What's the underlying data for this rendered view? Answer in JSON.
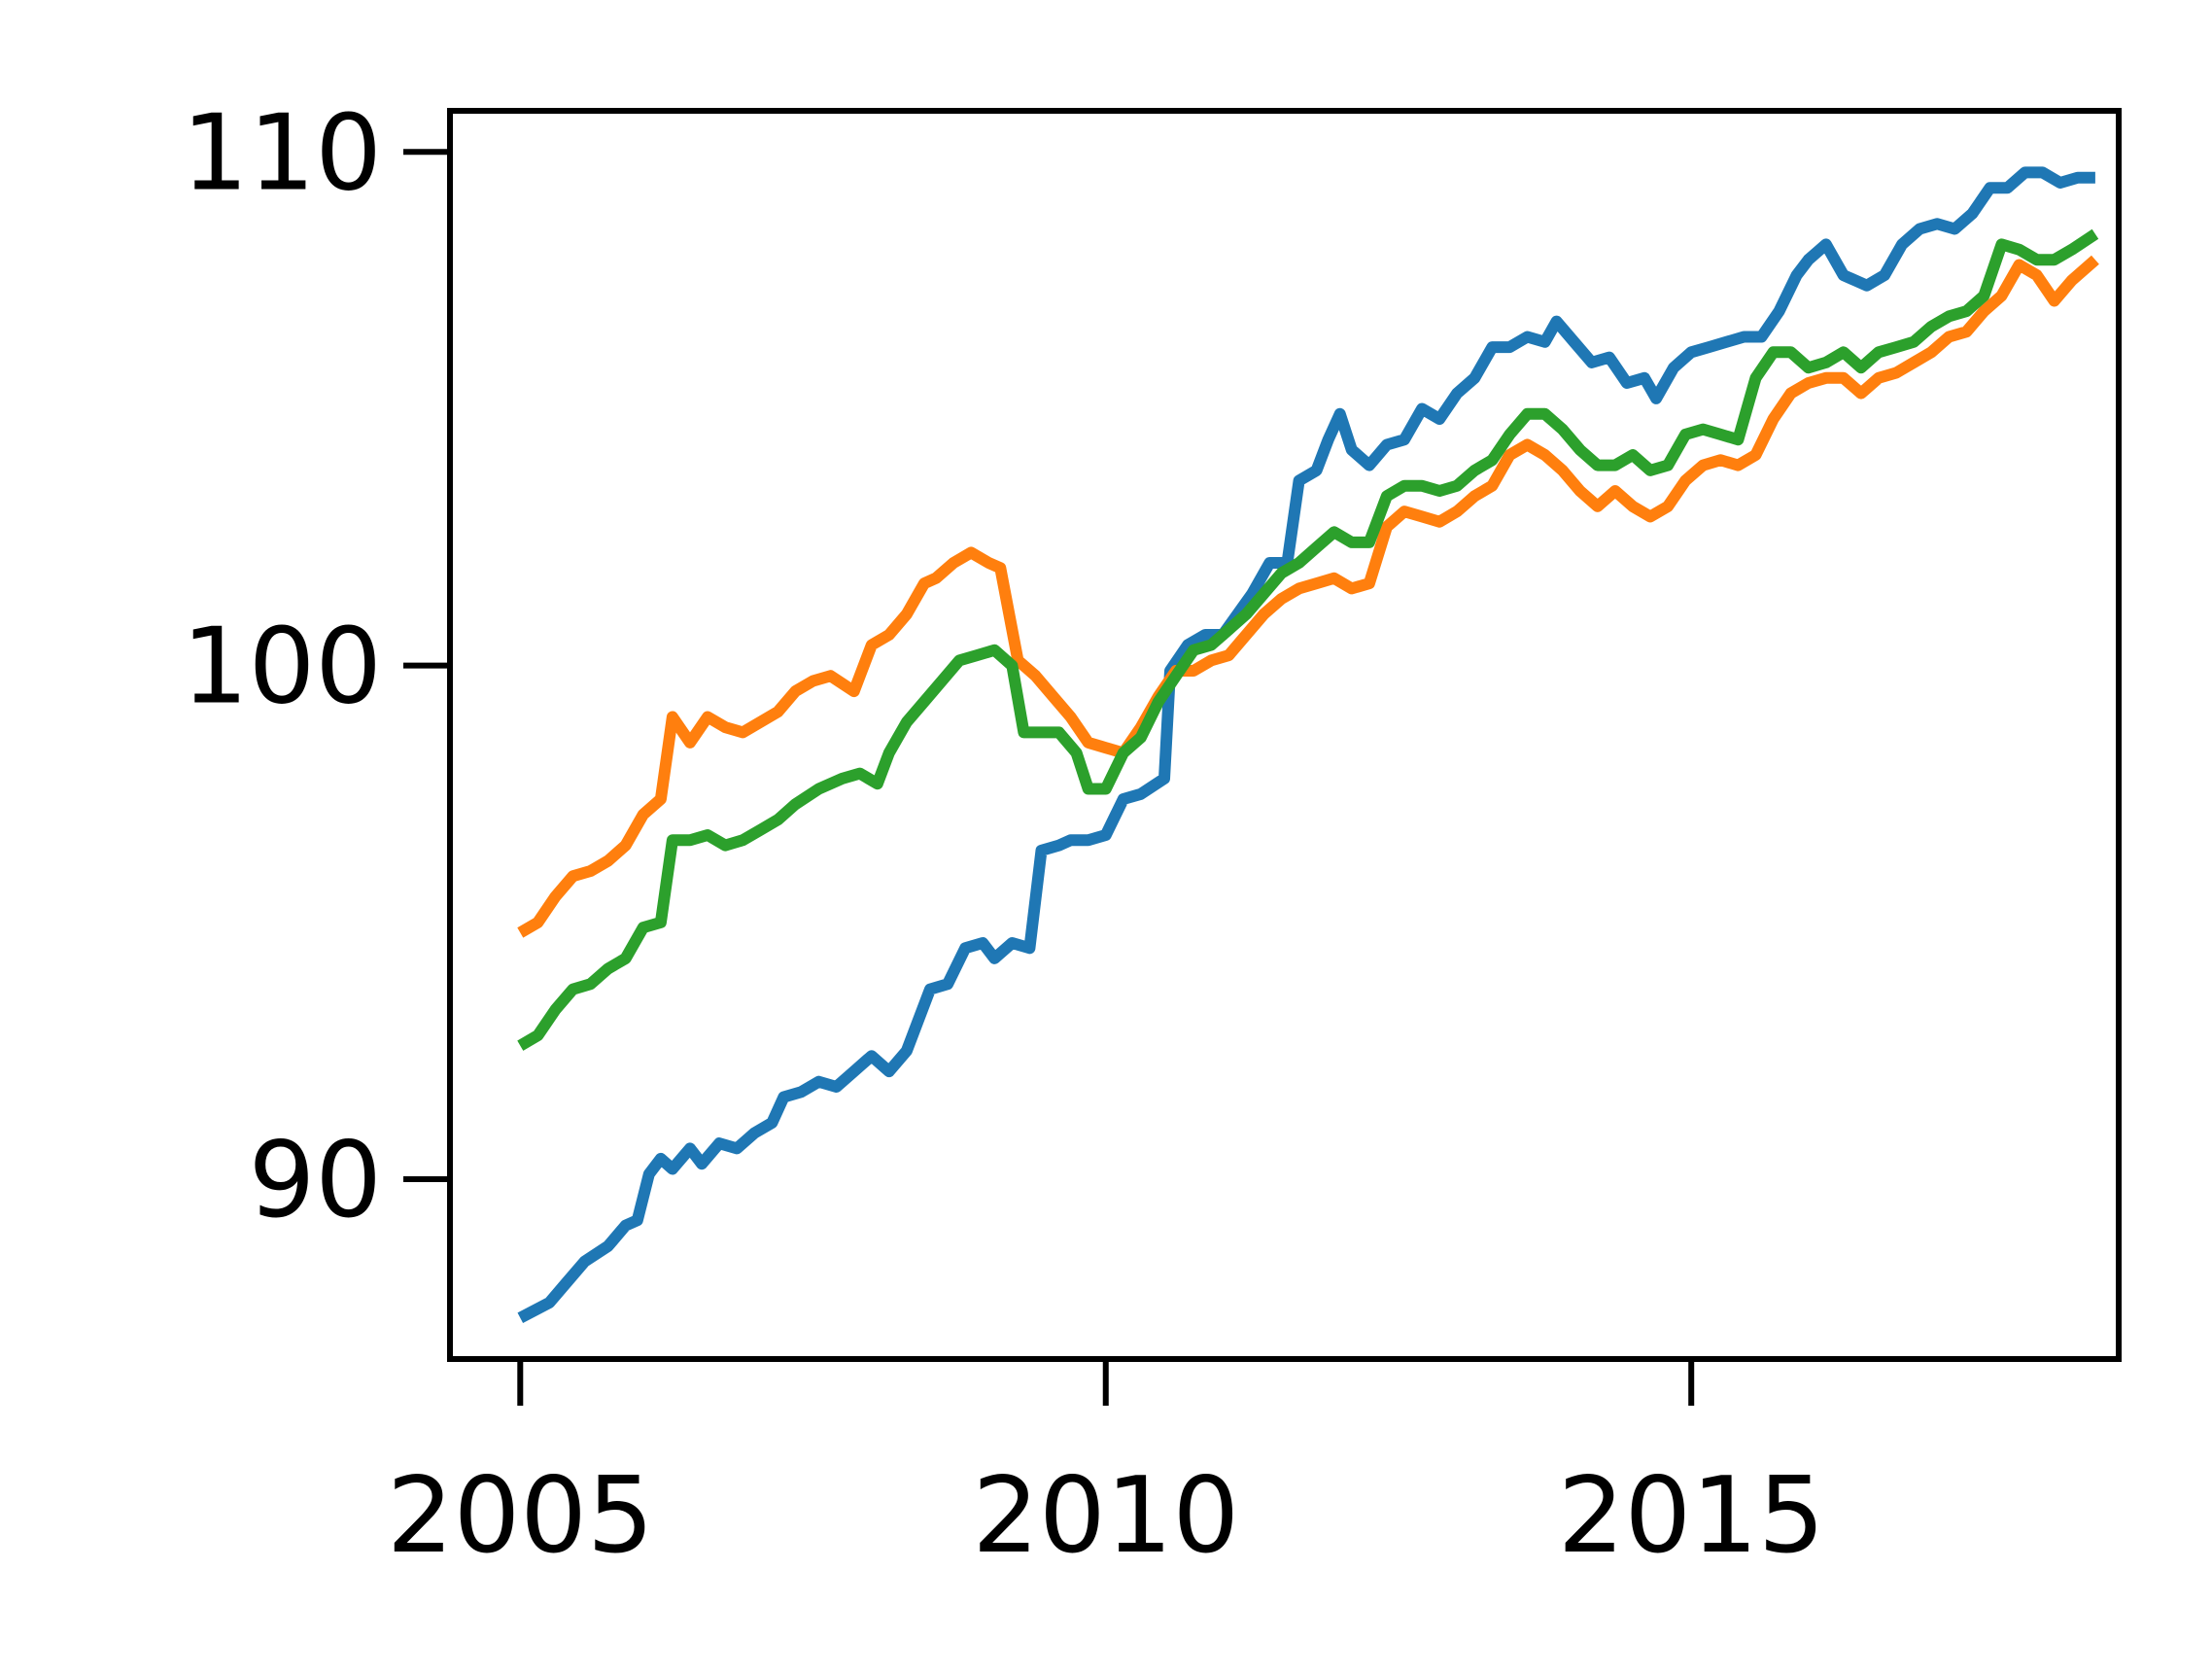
{
  "chart_data": {
    "type": "line",
    "title": "",
    "xlabel": "",
    "ylabel": "",
    "xlim": [
      2004.4,
      2018.65
    ],
    "ylim": [
      86.5,
      110.8
    ],
    "grid": false,
    "legend": "none",
    "x_ticks": [
      2005,
      2010,
      2015
    ],
    "x_tick_labels": [
      "2005",
      "2010",
      "2015"
    ],
    "y_ticks": [
      90,
      100,
      110
    ],
    "y_tick_labels": [
      "90",
      "100",
      "110"
    ],
    "series": [
      {
        "color": "#1f77b4",
        "points": [
          [
            2005.0,
            87.3
          ],
          [
            2005.25,
            87.6
          ],
          [
            2005.4,
            88.0
          ],
          [
            2005.55,
            88.4
          ],
          [
            2005.75,
            88.7
          ],
          [
            2005.9,
            89.1
          ],
          [
            2006.0,
            89.2
          ],
          [
            2006.1,
            90.1
          ],
          [
            2006.2,
            90.4
          ],
          [
            2006.3,
            90.2
          ],
          [
            2006.45,
            90.6
          ],
          [
            2006.55,
            90.3
          ],
          [
            2006.7,
            90.7
          ],
          [
            2006.85,
            90.6
          ],
          [
            2007.0,
            90.9
          ],
          [
            2007.15,
            91.1
          ],
          [
            2007.25,
            91.6
          ],
          [
            2007.4,
            91.7
          ],
          [
            2007.55,
            91.9
          ],
          [
            2007.7,
            91.8
          ],
          [
            2007.85,
            92.1
          ],
          [
            2008.0,
            92.4
          ],
          [
            2008.15,
            92.1
          ],
          [
            2008.3,
            92.5
          ],
          [
            2008.5,
            93.7
          ],
          [
            2008.65,
            93.8
          ],
          [
            2008.8,
            94.5
          ],
          [
            2008.95,
            94.6
          ],
          [
            2009.05,
            94.3
          ],
          [
            2009.2,
            94.6
          ],
          [
            2009.35,
            94.5
          ],
          [
            2009.45,
            96.4
          ],
          [
            2009.6,
            96.5
          ],
          [
            2009.7,
            96.6
          ],
          [
            2009.85,
            96.6
          ],
          [
            2010.0,
            96.7
          ],
          [
            2010.15,
            97.4
          ],
          [
            2010.3,
            97.5
          ],
          [
            2010.5,
            97.8
          ],
          [
            2010.55,
            99.9
          ],
          [
            2010.7,
            100.4
          ],
          [
            2010.85,
            100.6
          ],
          [
            2011.0,
            100.6
          ],
          [
            2011.25,
            101.4
          ],
          [
            2011.4,
            102.0
          ],
          [
            2011.55,
            102.0
          ],
          [
            2011.65,
            103.6
          ],
          [
            2011.8,
            103.8
          ],
          [
            2011.9,
            104.4
          ],
          [
            2012.0,
            104.9
          ],
          [
            2012.1,
            104.2
          ],
          [
            2012.25,
            103.9
          ],
          [
            2012.4,
            104.3
          ],
          [
            2012.55,
            104.4
          ],
          [
            2012.7,
            105.0
          ],
          [
            2012.85,
            104.8
          ],
          [
            2013.0,
            105.3
          ],
          [
            2013.15,
            105.6
          ],
          [
            2013.3,
            106.2
          ],
          [
            2013.45,
            106.2
          ],
          [
            2013.6,
            106.4
          ],
          [
            2013.75,
            106.3
          ],
          [
            2013.85,
            106.7
          ],
          [
            2014.0,
            106.3
          ],
          [
            2014.15,
            105.9
          ],
          [
            2014.3,
            106.0
          ],
          [
            2014.45,
            105.5
          ],
          [
            2014.6,
            105.6
          ],
          [
            2014.7,
            105.2
          ],
          [
            2014.85,
            105.8
          ],
          [
            2015.0,
            106.1
          ],
          [
            2015.15,
            106.2
          ],
          [
            2015.3,
            106.3
          ],
          [
            2015.45,
            106.4
          ],
          [
            2015.6,
            106.4
          ],
          [
            2015.75,
            106.9
          ],
          [
            2015.9,
            107.6
          ],
          [
            2016.0,
            107.9
          ],
          [
            2016.15,
            108.2
          ],
          [
            2016.3,
            107.6
          ],
          [
            2016.5,
            107.4
          ],
          [
            2016.65,
            107.6
          ],
          [
            2016.8,
            108.2
          ],
          [
            2016.95,
            108.5
          ],
          [
            2017.1,
            108.6
          ],
          [
            2017.25,
            108.5
          ],
          [
            2017.4,
            108.8
          ],
          [
            2017.55,
            109.3
          ],
          [
            2017.7,
            109.3
          ],
          [
            2017.85,
            109.6
          ],
          [
            2018.0,
            109.6
          ],
          [
            2018.15,
            109.4
          ],
          [
            2018.3,
            109.5
          ],
          [
            2018.45,
            109.5
          ]
        ]
      },
      {
        "color": "#ff7f0e",
        "points": [
          [
            2005.0,
            94.8
          ],
          [
            2005.15,
            95.0
          ],
          [
            2005.3,
            95.5
          ],
          [
            2005.45,
            95.9
          ],
          [
            2005.6,
            96.0
          ],
          [
            2005.75,
            96.2
          ],
          [
            2005.9,
            96.5
          ],
          [
            2006.05,
            97.1
          ],
          [
            2006.2,
            97.4
          ],
          [
            2006.3,
            99.0
          ],
          [
            2006.45,
            98.5
          ],
          [
            2006.6,
            99.0
          ],
          [
            2006.75,
            98.8
          ],
          [
            2006.9,
            98.7
          ],
          [
            2007.05,
            98.9
          ],
          [
            2007.2,
            99.1
          ],
          [
            2007.35,
            99.5
          ],
          [
            2007.5,
            99.7
          ],
          [
            2007.65,
            99.8
          ],
          [
            2007.85,
            99.5
          ],
          [
            2008.0,
            100.4
          ],
          [
            2008.15,
            100.6
          ],
          [
            2008.3,
            101.0
          ],
          [
            2008.45,
            101.6
          ],
          [
            2008.55,
            101.7
          ],
          [
            2008.7,
            102.0
          ],
          [
            2008.85,
            102.2
          ],
          [
            2009.0,
            102.0
          ],
          [
            2009.1,
            101.9
          ],
          [
            2009.25,
            100.1
          ],
          [
            2009.4,
            99.8
          ],
          [
            2009.55,
            99.4
          ],
          [
            2009.7,
            99.0
          ],
          [
            2009.85,
            98.5
          ],
          [
            2010.0,
            98.4
          ],
          [
            2010.15,
            98.3
          ],
          [
            2010.3,
            98.8
          ],
          [
            2010.45,
            99.4
          ],
          [
            2010.6,
            99.9
          ],
          [
            2010.75,
            99.9
          ],
          [
            2010.9,
            100.1
          ],
          [
            2011.05,
            100.2
          ],
          [
            2011.2,
            100.6
          ],
          [
            2011.35,
            101.0
          ],
          [
            2011.5,
            101.3
          ],
          [
            2011.65,
            101.5
          ],
          [
            2011.8,
            101.6
          ],
          [
            2011.95,
            101.7
          ],
          [
            2012.1,
            101.5
          ],
          [
            2012.25,
            101.6
          ],
          [
            2012.4,
            102.7
          ],
          [
            2012.55,
            103.0
          ],
          [
            2012.7,
            102.9
          ],
          [
            2012.85,
            102.8
          ],
          [
            2013.0,
            103.0
          ],
          [
            2013.15,
            103.3
          ],
          [
            2013.3,
            103.5
          ],
          [
            2013.45,
            104.1
          ],
          [
            2013.6,
            104.3
          ],
          [
            2013.75,
            104.1
          ],
          [
            2013.9,
            103.8
          ],
          [
            2014.05,
            103.4
          ],
          [
            2014.2,
            103.1
          ],
          [
            2014.35,
            103.4
          ],
          [
            2014.5,
            103.1
          ],
          [
            2014.65,
            102.9
          ],
          [
            2014.8,
            103.1
          ],
          [
            2014.95,
            103.6
          ],
          [
            2015.1,
            103.9
          ],
          [
            2015.25,
            104.0
          ],
          [
            2015.4,
            103.9
          ],
          [
            2015.55,
            104.1
          ],
          [
            2015.7,
            104.8
          ],
          [
            2015.85,
            105.3
          ],
          [
            2016.0,
            105.5
          ],
          [
            2016.15,
            105.6
          ],
          [
            2016.3,
            105.6
          ],
          [
            2016.45,
            105.3
          ],
          [
            2016.6,
            105.6
          ],
          [
            2016.75,
            105.7
          ],
          [
            2016.9,
            105.9
          ],
          [
            2017.05,
            106.1
          ],
          [
            2017.2,
            106.4
          ],
          [
            2017.35,
            106.5
          ],
          [
            2017.5,
            106.9
          ],
          [
            2017.65,
            107.2
          ],
          [
            2017.8,
            107.8
          ],
          [
            2017.95,
            107.6
          ],
          [
            2018.1,
            107.1
          ],
          [
            2018.25,
            107.5
          ],
          [
            2018.45,
            107.9
          ]
        ]
      },
      {
        "color": "#2ca02c",
        "points": [
          [
            2005.0,
            92.6
          ],
          [
            2005.15,
            92.8
          ],
          [
            2005.3,
            93.3
          ],
          [
            2005.45,
            93.7
          ],
          [
            2005.6,
            93.8
          ],
          [
            2005.75,
            94.1
          ],
          [
            2005.9,
            94.3
          ],
          [
            2006.05,
            94.9
          ],
          [
            2006.2,
            95.0
          ],
          [
            2006.3,
            96.6
          ],
          [
            2006.45,
            96.6
          ],
          [
            2006.6,
            96.7
          ],
          [
            2006.75,
            96.5
          ],
          [
            2006.9,
            96.6
          ],
          [
            2007.05,
            96.8
          ],
          [
            2007.2,
            97.0
          ],
          [
            2007.35,
            97.3
          ],
          [
            2007.55,
            97.6
          ],
          [
            2007.75,
            97.8
          ],
          [
            2007.9,
            97.9
          ],
          [
            2008.05,
            97.7
          ],
          [
            2008.15,
            98.3
          ],
          [
            2008.3,
            98.9
          ],
          [
            2008.45,
            99.3
          ],
          [
            2008.6,
            99.7
          ],
          [
            2008.75,
            100.1
          ],
          [
            2008.9,
            100.2
          ],
          [
            2009.05,
            100.3
          ],
          [
            2009.2,
            100.0
          ],
          [
            2009.3,
            98.7
          ],
          [
            2009.45,
            98.7
          ],
          [
            2009.6,
            98.7
          ],
          [
            2009.75,
            98.3
          ],
          [
            2009.85,
            97.6
          ],
          [
            2010.0,
            97.6
          ],
          [
            2010.15,
            98.3
          ],
          [
            2010.3,
            98.6
          ],
          [
            2010.45,
            99.3
          ],
          [
            2010.6,
            99.8
          ],
          [
            2010.75,
            100.3
          ],
          [
            2010.9,
            100.4
          ],
          [
            2011.05,
            100.7
          ],
          [
            2011.2,
            101.0
          ],
          [
            2011.35,
            101.4
          ],
          [
            2011.5,
            101.8
          ],
          [
            2011.65,
            102.0
          ],
          [
            2011.8,
            102.3
          ],
          [
            2011.95,
            102.6
          ],
          [
            2012.1,
            102.4
          ],
          [
            2012.25,
            102.4
          ],
          [
            2012.4,
            103.3
          ],
          [
            2012.55,
            103.5
          ],
          [
            2012.7,
            103.5
          ],
          [
            2012.85,
            103.4
          ],
          [
            2013.0,
            103.5
          ],
          [
            2013.15,
            103.8
          ],
          [
            2013.3,
            104.0
          ],
          [
            2013.45,
            104.5
          ],
          [
            2013.6,
            104.9
          ],
          [
            2013.75,
            104.9
          ],
          [
            2013.9,
            104.6
          ],
          [
            2014.05,
            104.2
          ],
          [
            2014.2,
            103.9
          ],
          [
            2014.35,
            103.9
          ],
          [
            2014.5,
            104.1
          ],
          [
            2014.65,
            103.8
          ],
          [
            2014.8,
            103.9
          ],
          [
            2014.95,
            104.5
          ],
          [
            2015.1,
            104.6
          ],
          [
            2015.25,
            104.5
          ],
          [
            2015.4,
            104.4
          ],
          [
            2015.55,
            105.6
          ],
          [
            2015.7,
            106.1
          ],
          [
            2015.85,
            106.1
          ],
          [
            2016.0,
            105.8
          ],
          [
            2016.15,
            105.9
          ],
          [
            2016.3,
            106.1
          ],
          [
            2016.45,
            105.8
          ],
          [
            2016.6,
            106.1
          ],
          [
            2016.75,
            106.2
          ],
          [
            2016.9,
            106.3
          ],
          [
            2017.05,
            106.6
          ],
          [
            2017.2,
            106.8
          ],
          [
            2017.35,
            106.9
          ],
          [
            2017.5,
            107.2
          ],
          [
            2017.65,
            108.2
          ],
          [
            2017.8,
            108.1
          ],
          [
            2017.95,
            107.9
          ],
          [
            2018.1,
            107.9
          ],
          [
            2018.25,
            108.1
          ],
          [
            2018.45,
            108.4
          ]
        ]
      }
    ]
  }
}
